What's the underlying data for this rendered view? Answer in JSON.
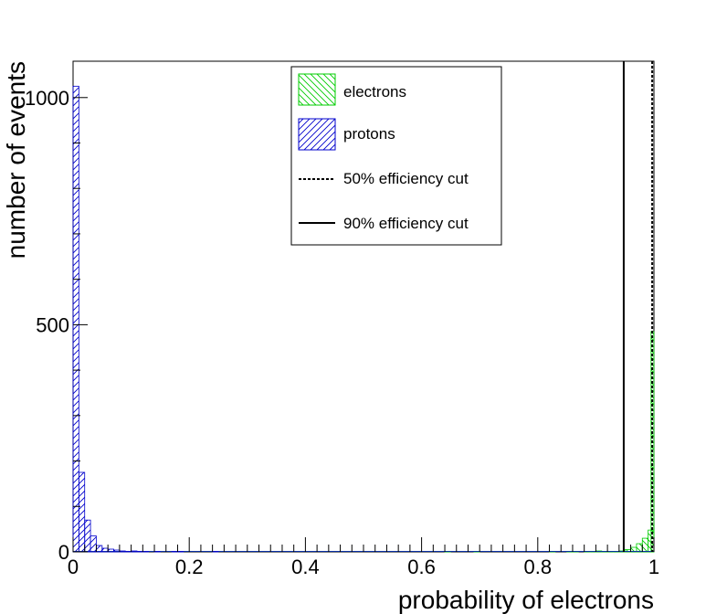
{
  "chart_data": {
    "type": "bar",
    "subtype": "histogram",
    "title": "",
    "xlabel": "probability of electrons",
    "ylabel": "number of events",
    "xlim": [
      0,
      1
    ],
    "ylim": [
      0,
      1080
    ],
    "x_ticks": [
      0,
      0.2,
      0.4,
      0.6,
      0.8,
      1
    ],
    "x_tick_labels": [
      "0",
      "0.2",
      "0.4",
      "0.6",
      "0.8",
      "1"
    ],
    "y_ticks": [
      0,
      500,
      1000
    ],
    "y_tick_labels": [
      "0",
      "500",
      "1000"
    ],
    "bin_width": 0.01,
    "grid": false,
    "legend_position": "top-center",
    "series": [
      {
        "name": "electrons",
        "color": "#00cc00",
        "hatch": "backslash",
        "bins": [
          [
            0.64,
            1
          ],
          [
            0.69,
            1
          ],
          [
            0.82,
            1
          ],
          [
            0.85,
            1
          ],
          [
            0.86,
            1
          ],
          [
            0.88,
            1
          ],
          [
            0.89,
            1
          ],
          [
            0.9,
            2
          ],
          [
            0.91,
            1
          ],
          [
            0.92,
            1
          ],
          [
            0.93,
            1
          ],
          [
            0.94,
            2
          ],
          [
            0.95,
            5
          ],
          [
            0.96,
            10
          ],
          [
            0.97,
            18
          ],
          [
            0.98,
            30
          ],
          [
            0.99,
            48
          ],
          [
            0.995,
            485
          ]
        ]
      },
      {
        "name": "protons",
        "color": "#0000cc",
        "hatch": "slash",
        "bins": [
          [
            0.0,
            1025
          ],
          [
            0.01,
            175
          ],
          [
            0.02,
            70
          ],
          [
            0.03,
            35
          ],
          [
            0.04,
            14
          ],
          [
            0.05,
            8
          ],
          [
            0.06,
            6
          ],
          [
            0.07,
            4
          ],
          [
            0.08,
            2
          ],
          [
            0.09,
            1
          ],
          [
            0.1,
            2
          ],
          [
            0.11,
            1
          ],
          [
            0.12,
            1
          ],
          [
            0.14,
            1
          ],
          [
            0.17,
            1
          ],
          [
            0.18,
            1
          ],
          [
            0.24,
            1
          ]
        ]
      }
    ],
    "cut_lines": [
      {
        "name": "50% efficiency cut",
        "x": 0.997,
        "style": "dotted"
      },
      {
        "name": "90% efficiency cut",
        "x": 0.948,
        "style": "solid"
      }
    ]
  }
}
